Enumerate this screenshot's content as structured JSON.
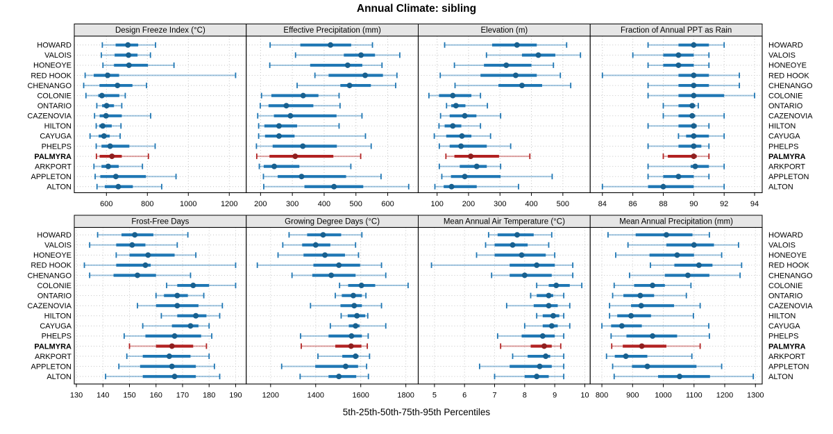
{
  "title": "Annual Climate: sibling",
  "footer": "5th-25th-50th-75th-95th Percentiles",
  "colors": {
    "normal": "#1f77b4",
    "normal_dot": "#18608f",
    "highlight": "#b22222",
    "highlight_dot": "#8f1f1f",
    "strip_bg": "#e6e6e6",
    "panel_border": "#000000",
    "grid": "#c4c4c4",
    "text": "#000000"
  },
  "chart_data": {
    "type": "interval",
    "subtype": "percentile-dotplot",
    "percentile_labels": [
      "5th",
      "25th",
      "50th",
      "75th",
      "95th"
    ],
    "legend_position": "none",
    "grid": "dotted-both-axes",
    "sites": [
      "HOWARD",
      "VALOIS",
      "HONEOYE",
      "RED HOOK",
      "CHENANGO",
      "COLONIE",
      "ONTARIO",
      "CAZENOVIA",
      "HILTON",
      "CAYUGA",
      "PHELPS",
      "PALMYRA",
      "ARKPORT",
      "APPLETON",
      "ALTON"
    ],
    "highlight_site": "PALMYRA",
    "panels": [
      {
        "title": "Design Freeze Index (°C)",
        "xlim": [
          443,
          1283
        ],
        "ticks": [
          600,
          800,
          1000,
          1200
        ],
        "values": [
          [
            580,
            645,
            705,
            755,
            840
          ],
          [
            575,
            640,
            708,
            752,
            815
          ],
          [
            583,
            637,
            710,
            803,
            930
          ],
          [
            496,
            538,
            606,
            662,
            1231
          ],
          [
            489,
            566,
            654,
            727,
            796
          ],
          [
            500,
            560,
            578,
            663,
            692
          ],
          [
            553,
            579,
            601,
            637,
            675
          ],
          [
            542,
            567,
            598,
            675,
            816
          ],
          [
            550,
            565,
            582,
            626,
            671
          ],
          [
            520,
            562,
            588,
            616,
            667
          ],
          [
            550,
            576,
            618,
            712,
            838
          ],
          [
            551,
            567,
            627,
            675,
            805
          ],
          [
            539,
            576,
            609,
            660,
            776
          ],
          [
            545,
            570,
            646,
            793,
            940
          ],
          [
            554,
            592,
            658,
            729,
            870
          ]
        ]
      },
      {
        "title": "Effective Precipitation (mm)",
        "xlim": [
          155,
          696
        ],
        "ticks": [
          200,
          300,
          400,
          500,
          600
        ],
        "values": [
          [
            230,
            325,
            420,
            485,
            552
          ],
          [
            310,
            462,
            516,
            560,
            638
          ],
          [
            229,
            356,
            474,
            520,
            582
          ],
          [
            371,
            414,
            529,
            585,
            629
          ],
          [
            315,
            451,
            480,
            547,
            625
          ],
          [
            203,
            234,
            334,
            382,
            447
          ],
          [
            199,
            225,
            281,
            366,
            450
          ],
          [
            191,
            242,
            294,
            439,
            519
          ],
          [
            194,
            212,
            258,
            315,
            447
          ],
          [
            194,
            214,
            258,
            307,
            530
          ],
          [
            187,
            238,
            333,
            440,
            548
          ],
          [
            188,
            228,
            309,
            429,
            515
          ],
          [
            196,
            210,
            243,
            322,
            484
          ],
          [
            209,
            254,
            329,
            469,
            579
          ],
          [
            210,
            338,
            431,
            523,
            666
          ]
        ]
      },
      {
        "title": "Elevation (m)",
        "xlim": [
          40,
          587
        ],
        "ticks": [
          100,
          200,
          300,
          400,
          500
        ],
        "values": [
          [
            124,
            275,
            354,
            417,
            512
          ],
          [
            257,
            370,
            422,
            476,
            556
          ],
          [
            155,
            249,
            320,
            400,
            470
          ],
          [
            110,
            238,
            350,
            417,
            492
          ],
          [
            157,
            295,
            370,
            434,
            525
          ],
          [
            74,
            106,
            150,
            209,
            238
          ],
          [
            130,
            145,
            160,
            190,
            260
          ],
          [
            111,
            140,
            188,
            225,
            302
          ],
          [
            106,
            124,
            150,
            177,
            238
          ],
          [
            91,
            129,
            179,
            209,
            270
          ],
          [
            107,
            140,
            176,
            258,
            334
          ],
          [
            128,
            155,
            207,
            297,
            395
          ],
          [
            107,
            172,
            226,
            258,
            302
          ],
          [
            115,
            144,
            188,
            302,
            466
          ],
          [
            93,
            121,
            146,
            226,
            359
          ]
        ]
      },
      {
        "title": "Fraction of Annual PPT as Rain",
        "xlim": [
          83.2,
          94.5
        ],
        "ticks": [
          84,
          86,
          88,
          90,
          92,
          94
        ],
        "values": [
          [
            87,
            89,
            90,
            91,
            92
          ],
          [
            86,
            88,
            89,
            90,
            91
          ],
          [
            87,
            88,
            89,
            90,
            91
          ],
          [
            84,
            89,
            90,
            91,
            93
          ],
          [
            87,
            89,
            90,
            91,
            93
          ],
          [
            87,
            89,
            90,
            92,
            94
          ],
          [
            88,
            89,
            89.9,
            90.1,
            90.3
          ],
          [
            88,
            89,
            89.9,
            90.1,
            92
          ],
          [
            87,
            89,
            90,
            90.2,
            91
          ],
          [
            89,
            89.5,
            90,
            91,
            92
          ],
          [
            87,
            89,
            90,
            90.5,
            91
          ],
          [
            88,
            88.3,
            90,
            90.2,
            91
          ],
          [
            87,
            89.8,
            90.1,
            91,
            92
          ],
          [
            87,
            88,
            89,
            90,
            91
          ],
          [
            84,
            87,
            88,
            90,
            92
          ]
        ]
      },
      {
        "title": "Frost-Free Days",
        "xlim": [
          129.2,
          194
        ],
        "ticks": [
          130,
          140,
          150,
          160,
          170,
          180,
          190
        ],
        "values": [
          [
            138,
            147,
            152,
            159,
            172
          ],
          [
            135,
            145,
            151,
            156,
            168
          ],
          [
            145,
            150,
            157,
            167,
            175
          ],
          [
            133,
            145,
            156,
            158,
            190
          ],
          [
            135,
            144,
            153,
            160,
            173
          ],
          [
            164,
            168,
            174,
            180,
            190
          ],
          [
            160,
            163,
            168,
            172,
            178
          ],
          [
            153,
            160,
            168,
            176,
            185
          ],
          [
            162,
            168,
            175,
            179,
            184
          ],
          [
            155,
            166,
            173,
            176,
            180
          ],
          [
            148,
            156,
            167,
            177,
            181
          ],
          [
            150,
            160,
            166,
            174,
            179
          ],
          [
            149,
            155,
            165,
            173,
            180
          ],
          [
            146,
            154,
            166,
            175,
            182
          ],
          [
            141,
            155,
            167,
            175,
            184
          ]
        ]
      },
      {
        "title": "Growing Degree Days (°C)",
        "xlim": [
          1092,
          1855
        ],
        "ticks": [
          1200,
          1400,
          1600,
          1800
        ],
        "values": [
          [
            1282,
            1362,
            1433,
            1513,
            1605
          ],
          [
            1254,
            1340,
            1400,
            1465,
            1577
          ],
          [
            1233,
            1346,
            1441,
            1530,
            1590
          ],
          [
            1141,
            1390,
            1503,
            1597,
            1692
          ],
          [
            1295,
            1385,
            1469,
            1577,
            1711
          ],
          [
            1506,
            1544,
            1603,
            1664,
            1810
          ],
          [
            1487,
            1516,
            1567,
            1605,
            1623
          ],
          [
            1377,
            1510,
            1571,
            1605,
            1692
          ],
          [
            1513,
            1542,
            1583,
            1620,
            1631
          ],
          [
            1465,
            1547,
            1577,
            1595,
            1711
          ],
          [
            1333,
            1457,
            1559,
            1605,
            1633
          ],
          [
            1336,
            1487,
            1557,
            1603,
            1629
          ],
          [
            1410,
            1518,
            1577,
            1590,
            1639
          ],
          [
            1249,
            1398,
            1533,
            1588,
            1626
          ],
          [
            1331,
            1457,
            1503,
            1580,
            1634
          ]
        ]
      },
      {
        "title": "Mean Annual Air Temperature (°C)",
        "xlim": [
          4.46,
          10.18
        ],
        "ticks": [
          5,
          6,
          7,
          8,
          9,
          10
        ],
        "values": [
          [
            6.8,
            7.1,
            7.75,
            8.3,
            8.9
          ],
          [
            6.7,
            7.0,
            7.6,
            8.1,
            8.8
          ],
          [
            6.4,
            7.0,
            7.9,
            8.7,
            9.0
          ],
          [
            4.9,
            7.5,
            8.4,
            9.0,
            9.6
          ],
          [
            6.9,
            7.5,
            8.0,
            8.9,
            9.6
          ],
          [
            8.4,
            8.8,
            9.05,
            9.5,
            9.9
          ],
          [
            8.2,
            8.4,
            8.8,
            8.95,
            9.3
          ],
          [
            7.4,
            8.3,
            8.8,
            9.1,
            9.5
          ],
          [
            8.4,
            8.6,
            8.95,
            9.15,
            9.3
          ],
          [
            8.0,
            8.6,
            8.9,
            9.1,
            9.5
          ],
          [
            7.1,
            7.9,
            8.6,
            9.0,
            9.3
          ],
          [
            7.2,
            8.2,
            8.65,
            8.9,
            9.2
          ],
          [
            7.6,
            8.1,
            8.7,
            8.85,
            9.3
          ],
          [
            6.5,
            7.5,
            8.5,
            8.9,
            9.3
          ],
          [
            7.0,
            8.0,
            8.4,
            8.8,
            9.3
          ]
        ]
      },
      {
        "title": "Mean Annual Precipitation (mm)",
        "xlim": [
          762,
          1322
        ],
        "ticks": [
          800,
          900,
          1000,
          1100,
          1200,
          1300
        ],
        "values": [
          [
            820,
            910,
            1010,
            1095,
            1150
          ],
          [
            885,
            1010,
            1100,
            1165,
            1245
          ],
          [
            845,
            955,
            1045,
            1100,
            1190
          ],
          [
            958,
            1036,
            1116,
            1160,
            1255
          ],
          [
            890,
            1005,
            1080,
            1150,
            1250
          ],
          [
            840,
            905,
            965,
            1005,
            1090
          ],
          [
            835,
            870,
            925,
            970,
            1075
          ],
          [
            825,
            895,
            928,
            1035,
            1120
          ],
          [
            825,
            850,
            895,
            960,
            1098
          ],
          [
            800,
            830,
            865,
            930,
            1148
          ],
          [
            830,
            880,
            965,
            1045,
            1150
          ],
          [
            832,
            868,
            930,
            1010,
            1120
          ],
          [
            815,
            842,
            878,
            948,
            1093
          ],
          [
            835,
            898,
            948,
            1108,
            1190
          ],
          [
            840,
            983,
            1053,
            1152,
            1293
          ]
        ]
      }
    ]
  }
}
